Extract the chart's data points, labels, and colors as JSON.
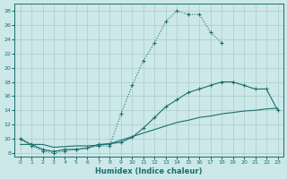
{
  "xlabel": "Humidex (Indice chaleur)",
  "bg_color": "#cce8e8",
  "grid_color": "#aacccc",
  "line_color": "#1a6e6e",
  "xlim": [
    -0.5,
    23.5
  ],
  "ylim": [
    7.5,
    29
  ],
  "yticks": [
    8,
    10,
    12,
    14,
    16,
    18,
    20,
    22,
    24,
    26,
    28
  ],
  "xticks": [
    0,
    1,
    2,
    3,
    4,
    5,
    6,
    7,
    8,
    9,
    10,
    11,
    12,
    13,
    14,
    15,
    16,
    17,
    18,
    19,
    20,
    21,
    22,
    23
  ],
  "line1_x": [
    0,
    1,
    2,
    3,
    4,
    5,
    6,
    7,
    8,
    9,
    10,
    11,
    12,
    13,
    14,
    15,
    16,
    17,
    18
  ],
  "line1_y": [
    10.0,
    9.0,
    8.3,
    8.0,
    8.3,
    8.5,
    8.7,
    9.0,
    9.0,
    13.5,
    17.5,
    21.0,
    23.5,
    26.5,
    28.0,
    27.5,
    27.5,
    25.0,
    23.5
  ],
  "line2_x": [
    0,
    1,
    2,
    3,
    4,
    5,
    6,
    7,
    8,
    9,
    10,
    11,
    12,
    13,
    14,
    15,
    16,
    17,
    18,
    19,
    20,
    21,
    22,
    23
  ],
  "line2_y": [
    10.0,
    9.2,
    8.5,
    8.2,
    8.5,
    8.5,
    8.7,
    9.2,
    9.3,
    9.5,
    10.2,
    11.5,
    13.0,
    14.5,
    15.5,
    16.5,
    17.0,
    17.5,
    18.0,
    18.0,
    17.5,
    17.0,
    17.0,
    14.0
  ],
  "line3_x": [
    0,
    1,
    2,
    3,
    4,
    5,
    6,
    7,
    8,
    9,
    10,
    11,
    12,
    13,
    14,
    15,
    16,
    17,
    18,
    19,
    20,
    21,
    22,
    23
  ],
  "line3_y": [
    9.2,
    9.2,
    9.2,
    8.8,
    8.9,
    9.0,
    9.0,
    9.1,
    9.3,
    9.8,
    10.3,
    10.8,
    11.3,
    11.8,
    12.3,
    12.6,
    13.0,
    13.2,
    13.5,
    13.7,
    13.9,
    14.0,
    14.2,
    14.3
  ]
}
